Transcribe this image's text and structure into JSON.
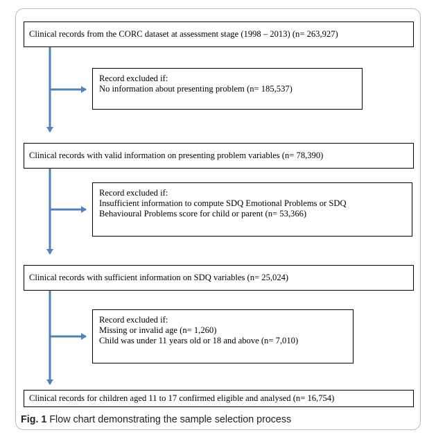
{
  "steps": [
    "Clinical records from the CORC dataset at assessment stage (1998 – 2013) (n= 263,927)",
    "Clinical records with valid information on presenting problem variables (n= 78,390)",
    "Clinical records with sufficient information on SDQ variables (n= 25,024)",
    "Clinical records for children aged 11 to 17 confirmed eligible and analysed (n= 16,754)"
  ],
  "exclusions": [
    {
      "title": "Record excluded if:",
      "items": [
        "No information about presenting problem (n= 185,537)"
      ]
    },
    {
      "title": "Record excluded if:",
      "items": [
        "Insufficient information to compute SDQ Emotional Problems or SDQ",
        "Behavioural Problems score for child or parent (n= 53,366)"
      ]
    },
    {
      "title": "Record excluded if:",
      "items": [
        "Missing or invalid age (n= 1,260)",
        "Child was under 11 years old or 18 and above (n= 7,010)"
      ]
    }
  ],
  "caption": {
    "label": "Fig. 1",
    "text": "Flow chart demonstrating the sample selection process"
  },
  "colors": {
    "arrow": "#4f81bd",
    "border": "#000000",
    "frame": "#bcbcbc"
  }
}
